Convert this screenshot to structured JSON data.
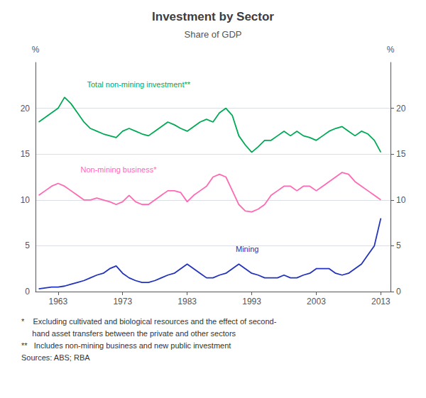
{
  "chart_data": {
    "type": "line",
    "title": "Investment by Sector",
    "subtitle": "Share of GDP",
    "ylabel": "%",
    "y2label": "%",
    "x": [
      1960,
      1961,
      1962,
      1963,
      1964,
      1965,
      1966,
      1967,
      1968,
      1969,
      1970,
      1971,
      1972,
      1973,
      1974,
      1975,
      1976,
      1977,
      1978,
      1979,
      1980,
      1981,
      1982,
      1983,
      1984,
      1985,
      1986,
      1987,
      1988,
      1989,
      1990,
      1991,
      1992,
      1993,
      1994,
      1995,
      1996,
      1997,
      1998,
      1999,
      2000,
      2001,
      2002,
      2003,
      2004,
      2005,
      2006,
      2007,
      2008,
      2009,
      2010,
      2011,
      2012,
      2013
    ],
    "series": [
      {
        "name": "Total non-mining investment**",
        "color": "#00aa55",
        "values": [
          18.5,
          19.0,
          19.5,
          20.0,
          21.2,
          20.5,
          19.5,
          18.5,
          17.8,
          17.5,
          17.2,
          17.0,
          16.8,
          17.5,
          17.8,
          17.5,
          17.2,
          17.0,
          17.5,
          18.0,
          18.5,
          18.2,
          17.8,
          17.5,
          18.0,
          18.5,
          18.8,
          18.5,
          19.5,
          20.0,
          19.2,
          17.0,
          16.0,
          15.2,
          15.8,
          16.5,
          16.5,
          17.0,
          17.5,
          17.0,
          17.5,
          17.0,
          16.8,
          16.5,
          17.0,
          17.5,
          17.8,
          18.0,
          17.5,
          17.0,
          17.5,
          17.2,
          16.5,
          15.2
        ]
      },
      {
        "name": "Non-mining business*",
        "color": "#ff69b4",
        "values": [
          10.5,
          11.0,
          11.5,
          11.8,
          11.5,
          11.0,
          10.5,
          10.0,
          10.0,
          10.2,
          10.0,
          9.8,
          9.5,
          9.8,
          10.5,
          9.8,
          9.5,
          9.5,
          10.0,
          10.5,
          11.0,
          11.0,
          10.8,
          9.8,
          10.5,
          11.0,
          11.5,
          12.5,
          12.8,
          12.5,
          11.0,
          9.5,
          8.8,
          8.7,
          9.0,
          9.5,
          10.5,
          11.0,
          11.5,
          11.5,
          11.0,
          11.5,
          11.5,
          11.0,
          11.5,
          12.0,
          12.5,
          13.0,
          12.8,
          12.0,
          11.5,
          11.0,
          10.5,
          10.0
        ]
      },
      {
        "name": "Mining",
        "color": "#2233bb",
        "values": [
          0.3,
          0.4,
          0.5,
          0.5,
          0.6,
          0.8,
          1.0,
          1.2,
          1.5,
          1.8,
          2.0,
          2.5,
          2.8,
          2.0,
          1.5,
          1.2,
          1.0,
          1.0,
          1.2,
          1.5,
          1.8,
          2.0,
          2.5,
          3.0,
          2.5,
          2.0,
          1.5,
          1.5,
          1.8,
          2.0,
          2.5,
          3.0,
          2.5,
          2.0,
          1.8,
          1.5,
          1.5,
          1.5,
          1.8,
          1.5,
          1.5,
          1.8,
          2.0,
          2.5,
          2.5,
          2.5,
          2.0,
          1.8,
          2.0,
          2.5,
          3.0,
          4.0,
          5.0,
          8.0
        ]
      }
    ],
    "xlim": [
      1959.5,
      2014.5
    ],
    "xticks": [
      1963,
      1973,
      1983,
      1993,
      2003,
      2013
    ],
    "ylim": [
      0,
      25
    ],
    "yticks": [
      0,
      5,
      10,
      15,
      20
    ],
    "y2lim": [
      0,
      25
    ],
    "y2ticks": [
      0,
      5,
      10,
      15,
      20
    ],
    "grid": true,
    "annotations": [
      "*    Excluding cultivated and biological resources and the effect of second-",
      "     hand asset transfers between the private and other sectors",
      "**   Includes non-mining business and new public investment",
      "Sources: ABS; RBA"
    ]
  }
}
